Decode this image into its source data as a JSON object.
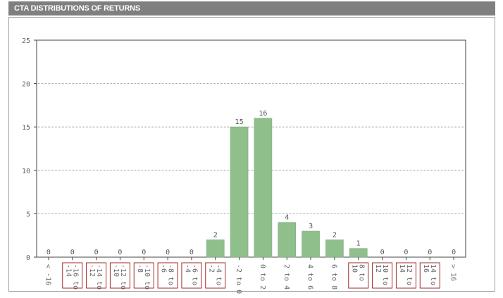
{
  "header": {
    "title": "CTA DISTRIBUTIONS OF RETURNS"
  },
  "colors": {
    "bar": "#8fbf8a",
    "bar_edge": "#7bae86",
    "highlight_box": "#a52a2a",
    "header_bg": "#7f7f7f"
  },
  "chart_data": {
    "type": "bar",
    "title": "",
    "xlabel": "",
    "ylabel": "",
    "ylim": [
      0,
      25
    ],
    "yticks": [
      0,
      5,
      10,
      15,
      20,
      25
    ],
    "grid": "horizontal-dotted",
    "legend": "none",
    "categories": [
      "< -16",
      "-16 to -14",
      "-14 to -12",
      "-12 to -10",
      "-10 to -8",
      "-8 to -6",
      "-6 to -4",
      "-4 to -2",
      "-2 to 0",
      "0 to 2",
      "2 to 4",
      "4 to 6",
      "6 to 8",
      "8 to 10",
      "10 to 12",
      "12 to 14",
      "14 to 16",
      "> 16"
    ],
    "label_lines": [
      [
        "< -16"
      ],
      [
        "-16 to",
        "-14"
      ],
      [
        "-14 to",
        "-12"
      ],
      [
        "-12 to",
        "-10"
      ],
      [
        "-10 to",
        "-8"
      ],
      [
        "-8 to",
        "-6"
      ],
      [
        "-6 to",
        "-4"
      ],
      [
        "-4 to",
        "-2"
      ],
      [
        "-2 to 0"
      ],
      [
        "0 to 2"
      ],
      [
        "2 to 4"
      ],
      [
        "4 to 6"
      ],
      [
        "6 to 8"
      ],
      [
        "8 to",
        "10"
      ],
      [
        "10 to",
        "12"
      ],
      [
        "12 to",
        "14"
      ],
      [
        "14 to",
        "16"
      ],
      [
        "> 16"
      ]
    ],
    "highlighted": [
      false,
      true,
      true,
      true,
      true,
      true,
      true,
      true,
      false,
      false,
      false,
      false,
      false,
      true,
      true,
      true,
      true,
      false
    ],
    "values": [
      0,
      0,
      0,
      0,
      0,
      0,
      0,
      2,
      15,
      16,
      4,
      3,
      2,
      1,
      0,
      0,
      0,
      0
    ]
  }
}
